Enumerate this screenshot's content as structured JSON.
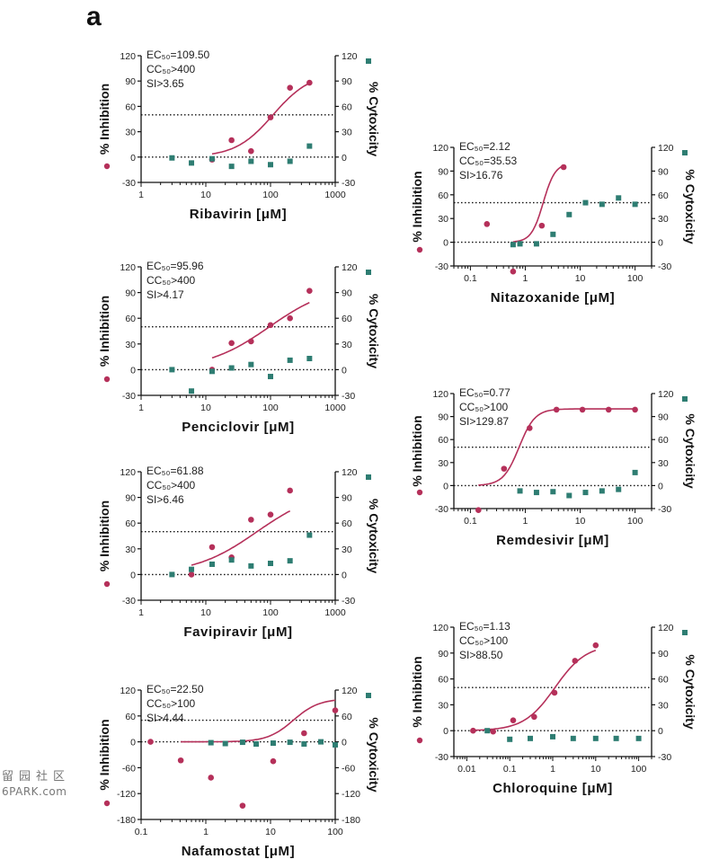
{
  "figure": {
    "panel_label": "a",
    "watermark_cn": "留园社区",
    "watermark_en": "6PARK.com",
    "colors": {
      "inhibition": "#b5305a",
      "cytotoxicity": "#2e7d72",
      "axis": "#111111"
    }
  },
  "chart_data": [
    {
      "type": "scatter",
      "drug": "Ribavirin",
      "xlabel": "Ribavirin [μM]",
      "ylabel_left": "% Inhibition",
      "ylabel_right": "% Cytoxicity",
      "x_scale": "log",
      "xlim": [
        1,
        1000
      ],
      "x_ticks": [
        1,
        10,
        100,
        1000
      ],
      "x_tick_labels": [
        "1",
        "10",
        "100",
        "1000"
      ],
      "ylim": [
        -30,
        120
      ],
      "y_ticks": [
        -30,
        0,
        30,
        60,
        90,
        120
      ],
      "y_tick_labels": [
        "-30",
        "0",
        "30",
        "60",
        "90",
        "120"
      ],
      "reference_lines": [
        0,
        50
      ],
      "annotations": {
        "ec50": "EC₅₀=109.50",
        "cc50": "CC₅₀>400",
        "si": "SI>3.65"
      },
      "series": [
        {
          "name": "% Inhibition",
          "marker": "circle",
          "points": [
            [
              12.5,
              -3
            ],
            [
              25,
              20
            ],
            [
              50,
              7
            ],
            [
              100,
              47
            ],
            [
              200,
              82
            ],
            [
              400,
              88
            ]
          ],
          "fit_curve": {
            "model": "4PL",
            "ec50": 109.5,
            "bottom": 0,
            "top": 100,
            "hill": 1.5,
            "x_range": [
              12.5,
              400
            ]
          }
        },
        {
          "name": "% Cytoxicity",
          "marker": "square",
          "points": [
            [
              3,
              -1
            ],
            [
              6,
              -7
            ],
            [
              12.5,
              -2
            ],
            [
              25,
              -11
            ],
            [
              50,
              -5
            ],
            [
              100,
              -9
            ],
            [
              200,
              -5
            ],
            [
              400,
              13
            ]
          ]
        }
      ]
    },
    {
      "type": "scatter",
      "drug": "Penciclovir",
      "xlabel": "Penciclovir [μM]",
      "ylabel_left": "% Inhibition",
      "ylabel_right": "% Cytoxicity",
      "x_scale": "log",
      "xlim": [
        1,
        1000
      ],
      "x_ticks": [
        1,
        10,
        100,
        1000
      ],
      "x_tick_labels": [
        "1",
        "10",
        "100",
        "1000"
      ],
      "ylim": [
        -30,
        120
      ],
      "y_ticks": [
        -30,
        0,
        30,
        60,
        90,
        120
      ],
      "y_tick_labels": [
        "-30",
        "0",
        "30",
        "60",
        "90",
        "120"
      ],
      "reference_lines": [
        0,
        50
      ],
      "annotations": {
        "ec50": "EC₅₀=95.96",
        "cc50": "CC₅₀>400",
        "si": "SI>4.17"
      },
      "series": [
        {
          "name": "% Inhibition",
          "marker": "circle",
          "points": [
            [
              12.5,
              0
            ],
            [
              25,
              31
            ],
            [
              50,
              33
            ],
            [
              100,
              52
            ],
            [
              200,
              60
            ],
            [
              400,
              92
            ]
          ],
          "fit_curve": {
            "model": "4PL",
            "ec50": 95.96,
            "bottom": 0,
            "top": 100,
            "hill": 0.9,
            "x_range": [
              12.5,
              400
            ]
          }
        },
        {
          "name": "% Cytoxicity",
          "marker": "square",
          "points": [
            [
              3,
              0
            ],
            [
              6,
              -25
            ],
            [
              12.5,
              -2
            ],
            [
              25,
              2
            ],
            [
              50,
              6
            ],
            [
              100,
              -8
            ],
            [
              200,
              11
            ],
            [
              400,
              13
            ]
          ]
        }
      ]
    },
    {
      "type": "scatter",
      "drug": "Favipiravir",
      "xlabel": "Favipiravir [μM]",
      "ylabel_left": "% Inhibition",
      "ylabel_right": "% Cytoxicity",
      "x_scale": "log",
      "xlim": [
        1,
        1000
      ],
      "x_ticks": [
        1,
        10,
        100,
        1000
      ],
      "x_tick_labels": [
        "1",
        "10",
        "100",
        "1000"
      ],
      "ylim": [
        -30,
        120
      ],
      "y_ticks": [
        -30,
        0,
        30,
        60,
        90,
        120
      ],
      "y_tick_labels": [
        "-30",
        "0",
        "30",
        "60",
        "90",
        "120"
      ],
      "reference_lines": [
        0,
        50
      ],
      "annotations": {
        "ec50": "EC₅₀=61.88",
        "cc50": "CC₅₀>400",
        "si": "SI>6.46"
      },
      "series": [
        {
          "name": "% Inhibition",
          "marker": "circle",
          "points": [
            [
              6,
              0
            ],
            [
              12.5,
              32
            ],
            [
              25,
              20
            ],
            [
              50,
              64
            ],
            [
              100,
              70
            ],
            [
              200,
              98
            ]
          ],
          "fit_curve": {
            "model": "4PL",
            "ec50": 61.88,
            "bottom": 0,
            "top": 100,
            "hill": 0.9,
            "x_range": [
              6,
              200
            ]
          }
        },
        {
          "name": "% Cytoxicity",
          "marker": "square",
          "points": [
            [
              3,
              0
            ],
            [
              6,
              6
            ],
            [
              12.5,
              12
            ],
            [
              25,
              17
            ],
            [
              50,
              10
            ],
            [
              100,
              13
            ],
            [
              200,
              16
            ],
            [
              400,
              46
            ]
          ]
        }
      ]
    },
    {
      "type": "scatter",
      "drug": "Nafamostat",
      "xlabel": "Nafamostat [μM]",
      "ylabel_left": "% Inhibition",
      "ylabel_right": "% Cytoxicity",
      "x_scale": "log",
      "xlim": [
        0.1,
        100
      ],
      "x_ticks": [
        0.1,
        1,
        10,
        100
      ],
      "x_tick_labels": [
        "0.1",
        "1",
        "10",
        "100"
      ],
      "ylim": [
        -180,
        120
      ],
      "y_ticks": [
        -180,
        -120,
        -60,
        0,
        60,
        120
      ],
      "y_tick_labels": [
        "-180",
        "-120",
        "-60",
        "0",
        "60",
        "120"
      ],
      "reference_lines": [
        0,
        50
      ],
      "annotations": {
        "ec50": "EC₅₀=22.50",
        "cc50": "CC₅₀>100",
        "si": "SI>4.44"
      },
      "series": [
        {
          "name": "% Inhibition",
          "marker": "circle",
          "points": [
            [
              0.14,
              0
            ],
            [
              0.41,
              -43
            ],
            [
              1.2,
              -83
            ],
            [
              3.7,
              -148
            ],
            [
              11,
              -45
            ],
            [
              33,
              20
            ],
            [
              100,
              73
            ]
          ],
          "fit_curve": {
            "model": "4PL",
            "ec50": 22.5,
            "bottom": 0,
            "top": 100,
            "hill": 2.2,
            "x_range": [
              0.41,
              100
            ]
          }
        },
        {
          "name": "% Cytoxicity",
          "marker": "square",
          "points": [
            [
              1.2,
              -2
            ],
            [
              2,
              -4
            ],
            [
              3.7,
              -1
            ],
            [
              6,
              -5
            ],
            [
              11,
              -3
            ],
            [
              20,
              -1
            ],
            [
              33,
              -5
            ],
            [
              60,
              0
            ],
            [
              100,
              -7
            ]
          ]
        }
      ]
    },
    {
      "type": "scatter",
      "drug": "Nitazoxanide",
      "xlabel": "Nitazoxanide [μM]",
      "ylabel_left": "% Inhibition",
      "ylabel_right": "% Cytoxicity",
      "x_scale": "log",
      "xlim": [
        0.05,
        200
      ],
      "x_ticks": [
        0.1,
        1,
        10,
        100
      ],
      "x_tick_labels": [
        "0.1",
        "1",
        "10",
        "100"
      ],
      "ylim": [
        -30,
        120
      ],
      "y_ticks": [
        -30,
        0,
        30,
        60,
        90,
        120
      ],
      "y_tick_labels": [
        "-30",
        "0",
        "30",
        "60",
        "90",
        "120"
      ],
      "reference_lines": [
        0,
        50
      ],
      "annotations": {
        "ec50": "EC₅₀=2.12",
        "cc50": "CC₅₀=35.53",
        "si": "SI>16.76"
      },
      "series": [
        {
          "name": "% Inhibition",
          "marker": "circle",
          "points": [
            [
              0.2,
              23
            ],
            [
              0.6,
              -37
            ],
            [
              2,
              21
            ],
            [
              5,
              95
            ]
          ],
          "fit_curve": {
            "model": "4PL",
            "ec50": 2.12,
            "bottom": 0,
            "top": 100,
            "hill": 4,
            "x_range": [
              0.6,
              5
            ]
          }
        },
        {
          "name": "% Cytoxicity",
          "marker": "square",
          "points": [
            [
              0.6,
              -3
            ],
            [
              0.8,
              -2
            ],
            [
              1.6,
              -2
            ],
            [
              3.2,
              10
            ],
            [
              6.3,
              35
            ],
            [
              12.5,
              50
            ],
            [
              25,
              48
            ],
            [
              50,
              56
            ],
            [
              100,
              48
            ]
          ]
        }
      ]
    },
    {
      "type": "scatter",
      "drug": "Remdesivir",
      "xlabel": "Remdesivir [μM]",
      "ylabel_left": "% Inhibition",
      "ylabel_right": "% Cytoxicity",
      "x_scale": "log",
      "xlim": [
        0.05,
        200
      ],
      "x_ticks": [
        0.1,
        1,
        10,
        100
      ],
      "x_tick_labels": [
        "0.1",
        "1",
        "10",
        "100"
      ],
      "ylim": [
        -30,
        120
      ],
      "y_ticks": [
        -30,
        0,
        30,
        60,
        90,
        120
      ],
      "y_tick_labels": [
        "-30",
        "0",
        "30",
        "60",
        "90",
        "120"
      ],
      "reference_lines": [
        0,
        50
      ],
      "annotations": {
        "ec50": "EC₅₀=0.77",
        "cc50": "CC₅₀>100",
        "si": "SI>129.87"
      },
      "series": [
        {
          "name": "% Inhibition",
          "marker": "circle",
          "points": [
            [
              0.14,
              -32
            ],
            [
              0.41,
              22
            ],
            [
              1.2,
              75
            ],
            [
              3.7,
              99
            ],
            [
              11,
              99
            ],
            [
              33,
              99
            ],
            [
              100,
              99
            ]
          ],
          "fit_curve": {
            "model": "4PL",
            "ec50": 0.77,
            "bottom": 0,
            "top": 100,
            "hill": 3,
            "x_range": [
              0.14,
              100
            ]
          }
        },
        {
          "name": "% Cytoxicity",
          "marker": "square",
          "points": [
            [
              0.8,
              -7
            ],
            [
              1.6,
              -9
            ],
            [
              3.2,
              -8
            ],
            [
              6.3,
              -13
            ],
            [
              12.5,
              -9
            ],
            [
              25,
              -7
            ],
            [
              50,
              -5
            ],
            [
              100,
              17
            ]
          ]
        }
      ]
    },
    {
      "type": "scatter",
      "drug": "Chloroquine",
      "xlabel": "Chloroquine [μM]",
      "ylabel_left": "% Inhibition",
      "ylabel_right": "% Cytoxicity",
      "x_scale": "log",
      "xlim": [
        0.005,
        200
      ],
      "x_ticks": [
        0.01,
        0.1,
        1,
        10,
        100
      ],
      "x_tick_labels": [
        "0.01",
        "0.1",
        "1",
        "10",
        "100"
      ],
      "ylim": [
        -30,
        120
      ],
      "y_ticks": [
        -30,
        0,
        30,
        60,
        90,
        120
      ],
      "y_tick_labels": [
        "-30",
        "0",
        "30",
        "60",
        "90",
        "120"
      ],
      "reference_lines": [
        0,
        50
      ],
      "annotations": {
        "ec50": "EC₅₀=1.13",
        "cc50": "CC₅₀>100",
        "si": "SI>88.50"
      },
      "series": [
        {
          "name": "% Inhibition",
          "marker": "circle",
          "points": [
            [
              0.014,
              0
            ],
            [
              0.041,
              -1
            ],
            [
              0.12,
              12
            ],
            [
              0.37,
              16
            ],
            [
              1.1,
              44
            ],
            [
              3.3,
              81
            ],
            [
              10,
              99
            ]
          ],
          "fit_curve": {
            "model": "4PL",
            "ec50": 1.13,
            "bottom": 0,
            "top": 100,
            "hill": 1.2,
            "x_range": [
              0.014,
              10
            ]
          }
        },
        {
          "name": "% Cytoxicity",
          "marker": "square",
          "points": [
            [
              0.03,
              0
            ],
            [
              0.1,
              -10
            ],
            [
              0.3,
              -9
            ],
            [
              1,
              -7
            ],
            [
              3,
              -9
            ],
            [
              10,
              -9
            ],
            [
              30,
              -9
            ],
            [
              100,
              -9
            ]
          ]
        }
      ]
    }
  ]
}
